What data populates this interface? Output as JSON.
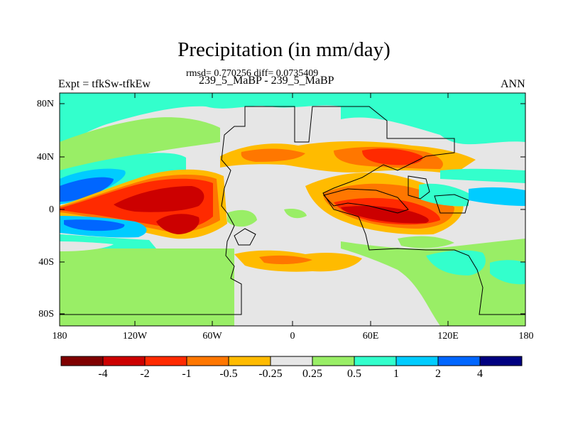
{
  "title": "Precipitation (in mm/day)",
  "stats": "rmsd= 0.770256 diff= 0.0735409",
  "subtitle": "239_5_MaBP - 239_5_MaBP",
  "expt_label": "Expt = tfkSw-tfkEw",
  "season": "ANN",
  "lat_ticks": [
    "80N",
    "40N",
    "0",
    "40S",
    "80S"
  ],
  "lon_ticks": [
    "180",
    "120W",
    "60W",
    "0",
    "60E",
    "120E",
    "180"
  ],
  "colorbar": {
    "labels": [
      "-4",
      "-2",
      "-1",
      "-0.5",
      "-0.25",
      "0.25",
      "0.5",
      "1",
      "2",
      "4"
    ],
    "colors": [
      "#7f0000",
      "#cc0000",
      "#ff2a00",
      "#ff7700",
      "#ffbb00",
      "#e6e6e6",
      "#99ee66",
      "#33ffcc",
      "#00ccff",
      "#0066ff",
      "#000080"
    ]
  }
}
